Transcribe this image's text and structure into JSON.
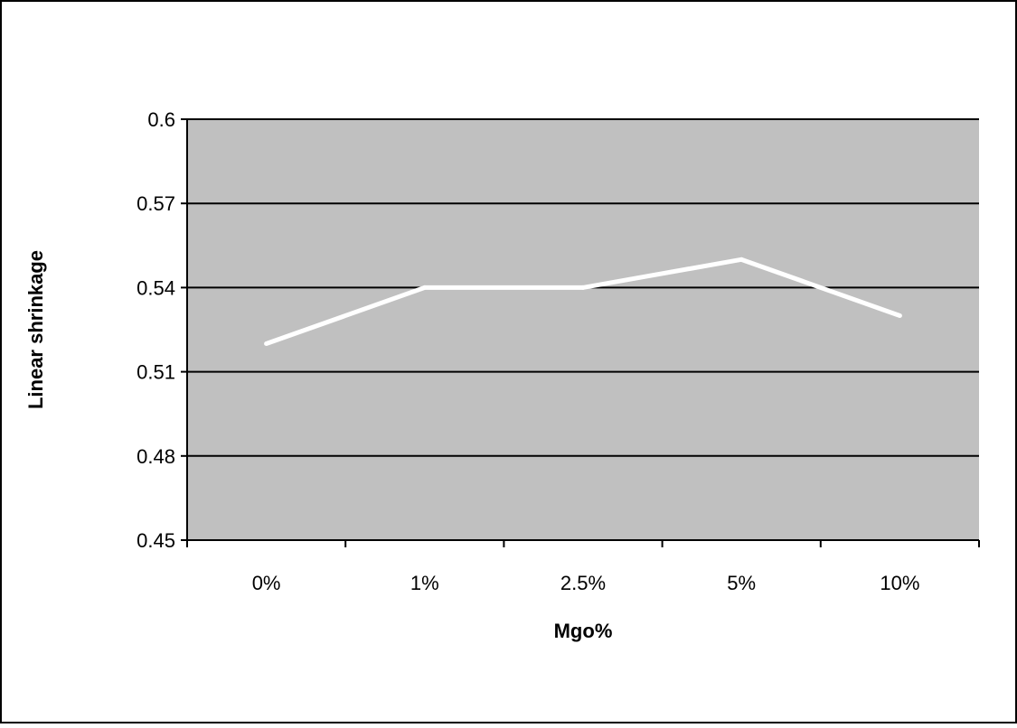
{
  "colors": {
    "plot_background": "#c0c0c0",
    "gridline": "#000000",
    "series_line": "#ffffff",
    "chart_border": "#000000"
  },
  "chart_data": {
    "type": "line",
    "title": "",
    "xlabel": "Mgo%",
    "ylabel": "Linear shrinkage",
    "categories": [
      "0%",
      "1%",
      "2.5%",
      "5%",
      "10%"
    ],
    "series": [
      {
        "values": [
          0.52,
          0.54,
          0.54,
          0.55,
          0.53
        ]
      }
    ],
    "ylim": [
      0.45,
      0.6
    ],
    "yticks": [
      "0.45",
      "0.48",
      "0.51",
      "0.54",
      "0.57",
      "0.6"
    ],
    "grid": true,
    "legend": "none"
  }
}
